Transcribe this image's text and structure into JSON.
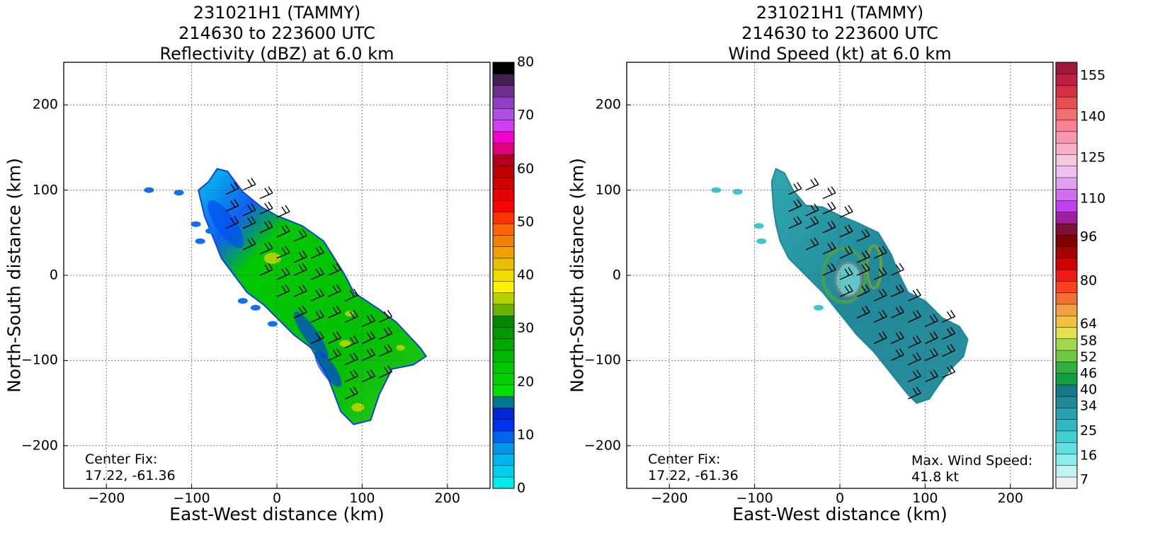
{
  "panels": [
    {
      "title_line1": "231021H1 (TAMMY)",
      "title_line2": "214630 to 223600 UTC",
      "title_line3": "Reflectivity (dBZ) at 6.0 km",
      "xlabel": "East-West distance (km)",
      "ylabel": "North-South distance (km)",
      "xticks": [
        "−200",
        "−100",
        "0",
        "100",
        "200"
      ],
      "yticks": [
        "200",
        "100",
        "0",
        "−100",
        "−200"
      ],
      "colorbar_ticks": [
        "80",
        "70",
        "60",
        "50",
        "40",
        "30",
        "20",
        "10",
        "0"
      ],
      "center_fix_label": "Center Fix:",
      "center_fix_value": "17.22, -61.36"
    },
    {
      "title_line1": "231021H1 (TAMMY)",
      "title_line2": "214630 to 223600 UTC",
      "title_line3": "Wind Speed (kt) at 6.0 km",
      "xlabel": "East-West distance (km)",
      "ylabel": "North-South distance (km)",
      "xticks": [
        "−200",
        "−100",
        "0",
        "100",
        "200"
      ],
      "yticks": [
        "200",
        "100",
        "0",
        "−100",
        "−200"
      ],
      "colorbar_ticks": [
        "155",
        "140",
        "125",
        "110",
        "96",
        "80",
        "64",
        "58",
        "52",
        "46",
        "40",
        "34",
        "25",
        "16",
        "7"
      ],
      "center_fix_label": "Center Fix:",
      "center_fix_value": "17.22, -61.36",
      "max_wind_label": "Max. Wind Speed:",
      "max_wind_value": "41.8 kt"
    }
  ],
  "chart_data": [
    {
      "type": "heatmap",
      "title": "231021H1 (TAMMY) 214630 to 223600 UTC Reflectivity (dBZ) at 6.0 km",
      "xlabel": "East-West distance (km)",
      "ylabel": "North-South distance (km)",
      "xlim": [
        -250,
        250
      ],
      "ylim": [
        -250,
        250
      ],
      "grid": true,
      "colorbar": {
        "range": [
          0,
          80
        ],
        "ticks": [
          0,
          10,
          20,
          30,
          40,
          50,
          60,
          70,
          80
        ],
        "colors": [
          "#00ecec",
          "#00cfec",
          "#00b4ec",
          "#0096ec",
          "#0064f0",
          "#0032f0",
          "#0028d0",
          "#007890",
          "#00e000",
          "#00d000",
          "#00c800",
          "#00b800",
          "#00a800",
          "#009800",
          "#008800",
          "#6ab400",
          "#b4d200",
          "#fff000",
          "#f0dc00",
          "#e8c000",
          "#f0a000",
          "#f08200",
          "#ff6400",
          "#ff3200",
          "#ff0000",
          "#e60000",
          "#d20000",
          "#c00000",
          "#b40020",
          "#e0007c",
          "#f000c8",
          "#d040f0",
          "#b050e0",
          "#9040c0",
          "#703090",
          "#402050",
          "#000000"
        ]
      },
      "center_fix": [
        17.22,
        -61.36
      ],
      "echo_outline_km": [
        [
          -70,
          125
        ],
        [
          -58,
          122
        ],
        [
          -40,
          98
        ],
        [
          -18,
          80
        ],
        [
          0,
          70
        ],
        [
          30,
          58
        ],
        [
          55,
          40
        ],
        [
          80,
          0
        ],
        [
          90,
          -20
        ],
        [
          120,
          -40
        ],
        [
          140,
          -55
        ],
        [
          168,
          -85
        ],
        [
          175,
          -95
        ],
        [
          160,
          -105
        ],
        [
          135,
          -110
        ],
        [
          120,
          -140
        ],
        [
          110,
          -170
        ],
        [
          90,
          -175
        ],
        [
          75,
          -160
        ],
        [
          60,
          -120
        ],
        [
          40,
          -85
        ],
        [
          20,
          -70
        ],
        [
          0,
          -50
        ],
        [
          -15,
          -35
        ],
        [
          -35,
          -20
        ],
        [
          -50,
          0
        ],
        [
          -65,
          20
        ],
        [
          -75,
          45
        ],
        [
          -85,
          70
        ],
        [
          -92,
          100
        ],
        [
          -80,
          110
        ]
      ],
      "isolated_echoes_km": [
        [
          -150,
          100
        ],
        [
          -115,
          97
        ],
        [
          -95,
          60
        ],
        [
          -78,
          52
        ],
        [
          -90,
          40
        ],
        [
          -40,
          -30
        ],
        [
          -25,
          -38
        ],
        [
          -5,
          -57
        ]
      ],
      "wind_barbs_km": [
        [
          -60,
          95
        ],
        [
          -40,
          100
        ],
        [
          -20,
          90
        ],
        [
          -60,
          75
        ],
        [
          -40,
          70
        ],
        [
          -20,
          72
        ],
        [
          0,
          68
        ],
        [
          -60,
          55
        ],
        [
          -40,
          55
        ],
        [
          -20,
          50
        ],
        [
          0,
          45
        ],
        [
          20,
          40
        ],
        [
          -40,
          30
        ],
        [
          -20,
          25
        ],
        [
          0,
          20
        ],
        [
          20,
          15
        ],
        [
          40,
          20
        ],
        [
          -20,
          0
        ],
        [
          0,
          -5
        ],
        [
          20,
          0
        ],
        [
          40,
          -5
        ],
        [
          60,
          0
        ],
        [
          0,
          -25
        ],
        [
          20,
          -25
        ],
        [
          40,
          -30
        ],
        [
          60,
          -25
        ],
        [
          80,
          -30
        ],
        [
          20,
          -50
        ],
        [
          40,
          -55
        ],
        [
          60,
          -50
        ],
        [
          80,
          -55
        ],
        [
          100,
          -60
        ],
        [
          120,
          -55
        ],
        [
          40,
          -80
        ],
        [
          60,
          -80
        ],
        [
          80,
          -85
        ],
        [
          100,
          -80
        ],
        [
          120,
          -75
        ],
        [
          60,
          -100
        ],
        [
          80,
          -105
        ],
        [
          100,
          -100
        ],
        [
          120,
          -95
        ],
        [
          80,
          -125
        ],
        [
          100,
          -125
        ],
        [
          120,
          -120
        ],
        [
          80,
          -145
        ]
      ]
    },
    {
      "type": "heatmap",
      "title": "231021H1 (TAMMY) 214630 to 223600 UTC Wind Speed (kt) at 6.0 km",
      "xlabel": "East-West distance (km)",
      "ylabel": "North-South distance (km)",
      "xlim": [
        -250,
        250
      ],
      "ylim": [
        -250,
        250
      ],
      "grid": true,
      "colorbar": {
        "range": [
          4,
          160
        ],
        "ticks": [
          7,
          16,
          25,
          34,
          40,
          46,
          52,
          58,
          64,
          80,
          96,
          110,
          125,
          140,
          155
        ],
        "colors": [
          "#f0f0f0",
          "#c0f4f4",
          "#90ecec",
          "#60e0e0",
          "#40d0d0",
          "#30b8c0",
          "#28a0b0",
          "#208898",
          "#187888",
          "#10a040",
          "#30b040",
          "#70c840",
          "#a0d850",
          "#e0e050",
          "#f0c040",
          "#f0a040",
          "#f07030",
          "#ff4020",
          "#f01818",
          "#d00000",
          "#a80000",
          "#800000",
          "#7c1038",
          "#a020a0",
          "#c040f0",
          "#d070f0",
          "#e0a0f0",
          "#f0c0f0",
          "#f8c8e0",
          "#f8b0c8",
          "#f898b0",
          "#f88090",
          "#f07070",
          "#e85050",
          "#d83040",
          "#c02040",
          "#a01838"
        ]
      },
      "center_fix": [
        17.22,
        -61.36
      ],
      "max_wind_speed_kt": 41.8,
      "echo_outline_km": [
        [
          -75,
          125
        ],
        [
          -65,
          120
        ],
        [
          -55,
          100
        ],
        [
          -40,
          82
        ],
        [
          -20,
          80
        ],
        [
          0,
          70
        ],
        [
          20,
          62
        ],
        [
          45,
          50
        ],
        [
          60,
          25
        ],
        [
          70,
          0
        ],
        [
          80,
          -20
        ],
        [
          100,
          -30
        ],
        [
          120,
          -50
        ],
        [
          140,
          -60
        ],
        [
          150,
          -75
        ],
        [
          145,
          -95
        ],
        [
          130,
          -110
        ],
        [
          115,
          -130
        ],
        [
          105,
          -145
        ],
        [
          90,
          -150
        ],
        [
          80,
          -140
        ],
        [
          60,
          -115
        ],
        [
          40,
          -90
        ],
        [
          20,
          -70
        ],
        [
          0,
          -45
        ],
        [
          -20,
          -20
        ],
        [
          -40,
          0
        ],
        [
          -60,
          20
        ],
        [
          -70,
          40
        ],
        [
          -75,
          60
        ],
        [
          -78,
          80
        ],
        [
          -80,
          110
        ]
      ],
      "isolated_echoes_km": [
        [
          -145,
          100
        ],
        [
          -120,
          98
        ],
        [
          -95,
          58
        ],
        [
          -92,
          40
        ],
        [
          -25,
          -38
        ]
      ],
      "wind_barbs_km": [
        [
          -60,
          95
        ],
        [
          -40,
          100
        ],
        [
          -20,
          90
        ],
        [
          -60,
          75
        ],
        [
          -40,
          70
        ],
        [
          -20,
          72
        ],
        [
          0,
          68
        ],
        [
          -60,
          55
        ],
        [
          -40,
          55
        ],
        [
          -20,
          50
        ],
        [
          0,
          45
        ],
        [
          20,
          40
        ],
        [
          -40,
          30
        ],
        [
          -20,
          25
        ],
        [
          0,
          20
        ],
        [
          20,
          15
        ],
        [
          40,
          20
        ],
        [
          -20,
          0
        ],
        [
          0,
          -5
        ],
        [
          20,
          0
        ],
        [
          40,
          -5
        ],
        [
          60,
          0
        ],
        [
          0,
          -25
        ],
        [
          20,
          -25
        ],
        [
          40,
          -30
        ],
        [
          60,
          -25
        ],
        [
          80,
          -30
        ],
        [
          20,
          -50
        ],
        [
          40,
          -55
        ],
        [
          60,
          -50
        ],
        [
          80,
          -55
        ],
        [
          100,
          -60
        ],
        [
          120,
          -55
        ],
        [
          40,
          -80
        ],
        [
          60,
          -80
        ],
        [
          80,
          -85
        ],
        [
          100,
          -80
        ],
        [
          120,
          -75
        ],
        [
          60,
          -100
        ],
        [
          80,
          -105
        ],
        [
          100,
          -100
        ],
        [
          120,
          -95
        ],
        [
          80,
          -125
        ],
        [
          100,
          -125
        ],
        [
          120,
          -120
        ],
        [
          80,
          -145
        ]
      ]
    }
  ]
}
